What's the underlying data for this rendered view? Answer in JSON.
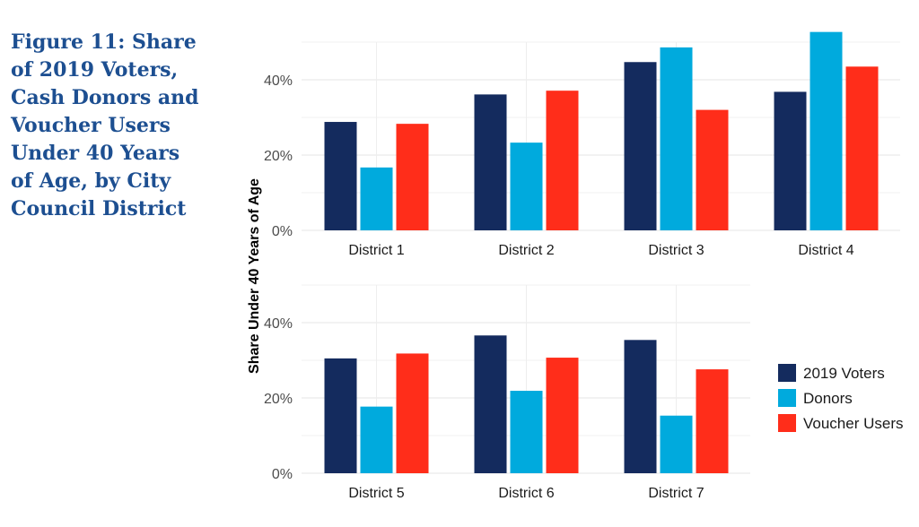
{
  "title_lines": [
    "Figure 11: Share",
    "of 2019 Voters,",
    "Cash Donors and",
    "Voucher Users",
    "Under 40 Years",
    "of Age, by City",
    "Council District"
  ],
  "chart_data": {
    "type": "bar",
    "ylabel": "Share Under 40 Years of Age",
    "y_ticks": [
      "0%",
      "20%",
      "40%"
    ],
    "ylim": [
      0,
      0.5
    ],
    "grid": true,
    "legend_position": "right",
    "series": [
      {
        "name": "2019 Voters",
        "color": "#142b5e"
      },
      {
        "name": "Donors",
        "color": "#00aadd"
      },
      {
        "name": "Voucher Users",
        "color": "#ff2d1a"
      }
    ],
    "panels": [
      {
        "categories": [
          "District 1",
          "District 2",
          "District 3",
          "District 4"
        ],
        "values": [
          [
            0.288,
            0.167,
            0.283
          ],
          [
            0.361,
            0.233,
            0.371
          ],
          [
            0.447,
            0.486,
            0.32
          ],
          [
            0.368,
            0.527,
            0.435
          ]
        ]
      },
      {
        "categories": [
          "District 5",
          "District 6",
          "District 7"
        ],
        "values": [
          [
            0.305,
            0.177,
            0.318
          ],
          [
            0.366,
            0.219,
            0.307
          ],
          [
            0.354,
            0.153,
            0.276
          ]
        ]
      }
    ]
  }
}
